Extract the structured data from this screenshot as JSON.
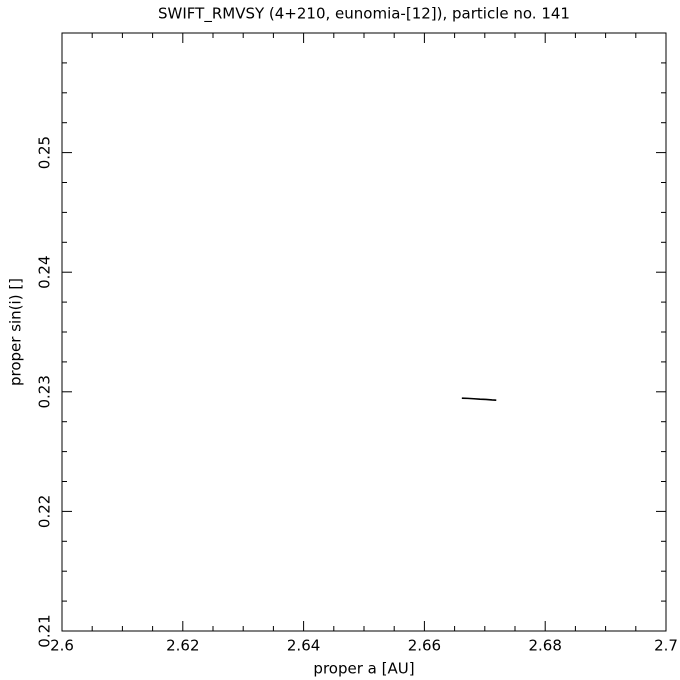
{
  "chart_data": {
    "type": "line",
    "title": "SWIFT_RMVSY (4+210, eunomia-[12]), particle no. 141",
    "x_label": "proper a [AU]",
    "y_label": "proper sin(i) []",
    "x": [
      2.6662,
      2.6672,
      2.6682,
      2.6692,
      2.6702,
      2.6712,
      2.6719
    ],
    "series": [
      {
        "color": "#000000",
        "values": [
          0.22947,
          0.22945,
          0.22942,
          0.22938,
          0.22936,
          0.22932,
          0.2293
        ]
      }
    ],
    "xlim": [
      2.6,
      2.7
    ],
    "xticks": [
      2.6,
      2.62,
      2.64,
      2.66,
      2.68,
      2.7
    ],
    "ylim": [
      0.21,
      0.26
    ],
    "yticks": [
      0.21,
      0.22,
      0.23,
      0.24,
      0.25
    ],
    "grid": false
  }
}
